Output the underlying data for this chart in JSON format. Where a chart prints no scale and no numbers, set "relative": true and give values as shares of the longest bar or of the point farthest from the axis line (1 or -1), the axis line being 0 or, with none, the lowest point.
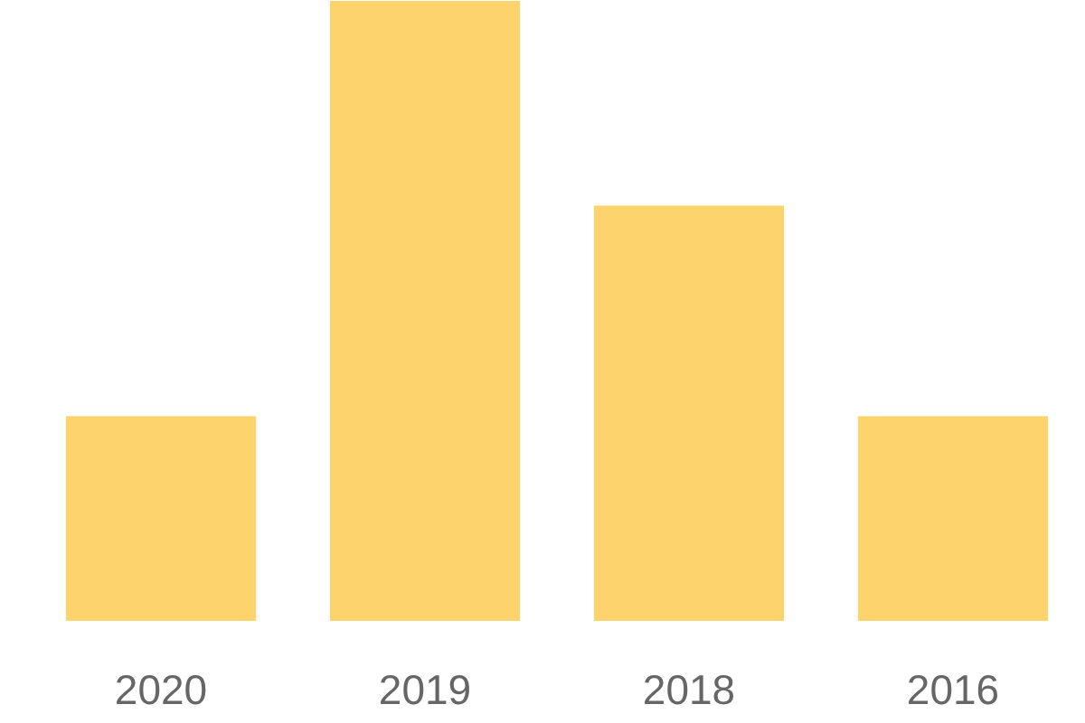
{
  "chart_data": {
    "type": "bar",
    "relative": true,
    "categories": [
      "2020",
      "2019",
      "2018",
      "2016"
    ],
    "values": [
      0.33,
      1,
      0.67,
      0.33
    ],
    "color": "#fdd46b"
  }
}
